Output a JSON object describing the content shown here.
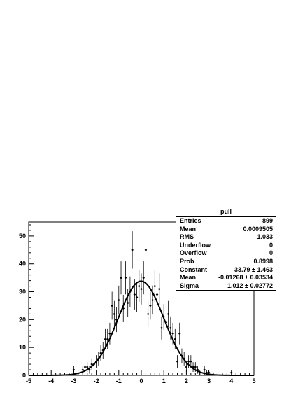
{
  "chart_data": {
    "type": "scatter",
    "title": "",
    "xlabel": "",
    "ylabel": "",
    "xlim": [
      -5,
      5
    ],
    "ylim": [
      0,
      55
    ],
    "xticks": [
      "-5",
      "-4",
      "-3",
      "-2",
      "-1",
      "0",
      "1",
      "2",
      "3",
      "4",
      "5"
    ],
    "yticks": [
      "0",
      "10",
      "20",
      "30",
      "40",
      "50"
    ],
    "grid": false,
    "series": [
      {
        "x": [
          -3.0,
          -2.6,
          -2.5,
          -2.4,
          -2.3,
          -2.2,
          -2.1,
          -2.0,
          -1.9,
          -1.8,
          -1.7,
          -1.6,
          -1.5,
          -1.4,
          -1.3,
          -1.2,
          -1.1,
          -1.0,
          -0.9,
          -0.8,
          -0.7,
          -0.6,
          -0.5,
          -0.4,
          -0.3,
          -0.2,
          -0.1,
          0.0,
          0.1,
          0.2,
          0.3,
          0.4,
          0.5,
          0.6,
          0.7,
          0.8,
          0.9,
          1.0,
          1.1,
          1.2,
          1.3,
          1.4,
          1.5,
          1.6,
          1.7,
          1.8,
          1.9,
          2.0,
          2.1,
          2.2,
          2.3,
          2.4,
          2.5,
          2.6,
          2.8,
          2.9,
          3.0,
          4.0
        ],
        "y": [
          2,
          2,
          3,
          3,
          2,
          4,
          4,
          5,
          6,
          8,
          9,
          13,
          13,
          15,
          25,
          22,
          20,
          27,
          35,
          24,
          35,
          26,
          30,
          45,
          29,
          28,
          32,
          31,
          35,
          45,
          22,
          25,
          27,
          32,
          29,
          31,
          17,
          21,
          19,
          22,
          17,
          15,
          13,
          5,
          15,
          7,
          6,
          3,
          5,
          5,
          3,
          3,
          2,
          1,
          2,
          1,
          1,
          1
        ]
      },
      {
        "name": "fit",
        "function": "gaus",
        "constant": 33.79,
        "mean": -0.01268,
        "sigma": 1.012
      }
    ],
    "legend": "top-right"
  },
  "stats": {
    "title": "pull",
    "rows": [
      {
        "label": "Entries",
        "value": "899"
      },
      {
        "label": "Mean",
        "value": "0.0009505"
      },
      {
        "label": "RMS",
        "value": "1.033"
      },
      {
        "label": "Underflow",
        "value": "0"
      },
      {
        "label": "Overflow",
        "value": "0"
      },
      {
        "label": "Prob",
        "value": "0.8998"
      },
      {
        "label": "Constant",
        "value": "33.79 ± 1.463"
      },
      {
        "label": "Mean",
        "value": "-0.01268 ± 0.03534"
      },
      {
        "label": "Sigma",
        "value": "1.012 ± 0.02772"
      }
    ]
  }
}
